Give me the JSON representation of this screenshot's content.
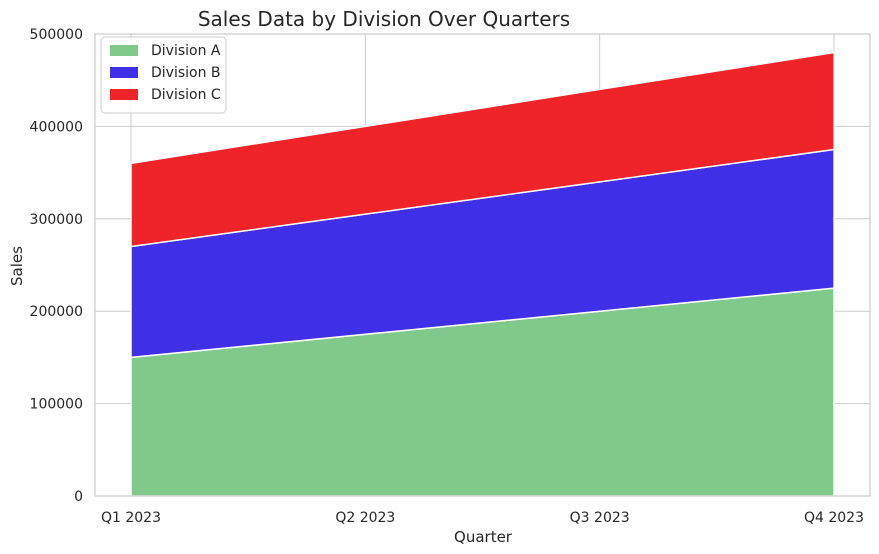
{
  "chart_data": {
    "type": "area",
    "stacked": true,
    "title": "Sales Data by Division Over Quarters",
    "xlabel": "Quarter",
    "ylabel": "Sales",
    "categories": [
      "Q1 2023",
      "Q2 2023",
      "Q3 2023",
      "Q4 2023"
    ],
    "ylim": [
      0,
      500000
    ],
    "yticks": [
      0,
      100000,
      200000,
      300000,
      400000,
      500000
    ],
    "grid": true,
    "legend_position": "top-left",
    "series": [
      {
        "name": "Division A",
        "color": "#81c98a",
        "values": [
          150000,
          175000,
          200000,
          225000
        ]
      },
      {
        "name": "Division B",
        "color": "#3f2fe6",
        "values": [
          120000,
          130000,
          140000,
          150000
        ]
      },
      {
        "name": "Division C",
        "color": "#ee2428",
        "values": [
          90000,
          95000,
          100000,
          105000
        ]
      }
    ]
  }
}
